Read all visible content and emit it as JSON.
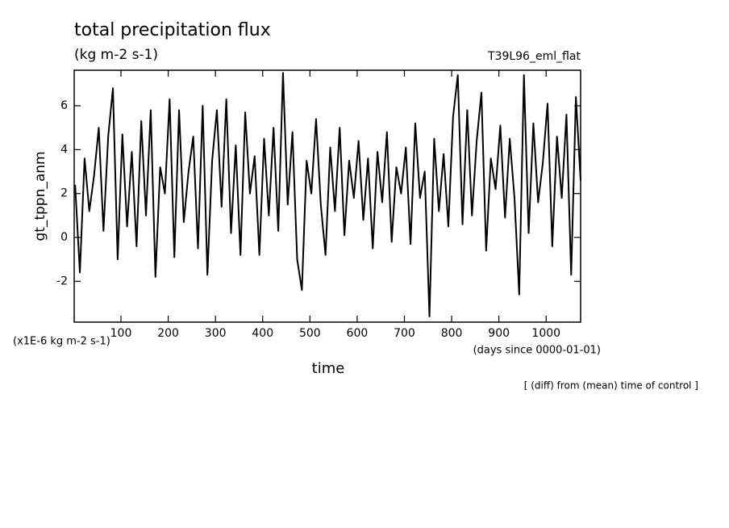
{
  "chart_data": {
    "type": "line",
    "title": "total precipitation flux",
    "subtitle": "(kg m-2 s-1)",
    "experiment": "T39L96_eml_flat",
    "y_label": "gt_tppn_anm",
    "y_unit": "(x1E-6 kg m-2 s-1)",
    "x_label": "time",
    "x_unit": "(days since 0000-01-01)",
    "note": "[ (diff) from (mean) time of control ]",
    "color": "#000000",
    "xlim": [
      1,
      1073
    ],
    "ylim": [
      -3.86,
      7.62
    ],
    "xticks": [
      100,
      200,
      300,
      400,
      500,
      600,
      700,
      800,
      900,
      1000
    ],
    "yticks": [
      -2,
      0,
      2,
      4,
      6
    ],
    "x": [
      3,
      13,
      23,
      33,
      43,
      53,
      63,
      73,
      83,
      93,
      103,
      113,
      123,
      133,
      143,
      153,
      163,
      173,
      183,
      193,
      203,
      213,
      223,
      233,
      243,
      253,
      263,
      273,
      283,
      293,
      303,
      313,
      323,
      333,
      343,
      353,
      363,
      373,
      383,
      393,
      403,
      413,
      423,
      433,
      443,
      453,
      463,
      473,
      483,
      493,
      503,
      513,
      523,
      533,
      543,
      553,
      563,
      573,
      583,
      593,
      603,
      613,
      623,
      633,
      643,
      653,
      663,
      673,
      683,
      693,
      703,
      713,
      723,
      733,
      743,
      753,
      763,
      773,
      783,
      793,
      803,
      813,
      823,
      833,
      843,
      853,
      863,
      873,
      883,
      893,
      903,
      913,
      923,
      933,
      943,
      953,
      963,
      973,
      983,
      993,
      1003,
      1013,
      1023,
      1033,
      1043,
      1053,
      1063,
      1073
    ],
    "values": [
      2.4,
      -1.6,
      3.6,
      1.2,
      2.8,
      5.0,
      0.3,
      4.6,
      6.8,
      -1.0,
      4.7,
      0.5,
      3.9,
      -0.4,
      5.3,
      1.0,
      5.8,
      -1.8,
      3.2,
      2.0,
      6.3,
      -0.9,
      5.8,
      0.7,
      3.0,
      4.6,
      -0.5,
      6.0,
      -1.7,
      3.5,
      5.8,
      1.4,
      6.3,
      0.2,
      4.2,
      -0.8,
      5.7,
      2.0,
      3.7,
      -0.8,
      4.5,
      1.0,
      5.0,
      0.3,
      7.5,
      1.5,
      4.8,
      -1.0,
      -2.4,
      3.5,
      2.0,
      5.4,
      1.5,
      -0.8,
      4.1,
      1.2,
      5.0,
      0.1,
      3.5,
      1.8,
      4.4,
      0.8,
      3.6,
      -0.5,
      3.9,
      1.6,
      4.8,
      -0.2,
      3.2,
      2.0,
      4.1,
      -0.3,
      5.2,
      1.8,
      3.0,
      -3.6,
      4.5,
      1.2,
      3.8,
      0.5,
      5.5,
      7.4,
      0.6,
      5.8,
      1.0,
      4.4,
      6.6,
      -0.6,
      3.6,
      2.2,
      5.1,
      0.9,
      4.5,
      1.8,
      -2.6,
      7.4,
      0.2,
      5.2,
      1.6,
      3.4,
      6.1,
      -0.4,
      4.6,
      1.8,
      5.6,
      -1.7,
      6.4,
      2.6
    ]
  }
}
